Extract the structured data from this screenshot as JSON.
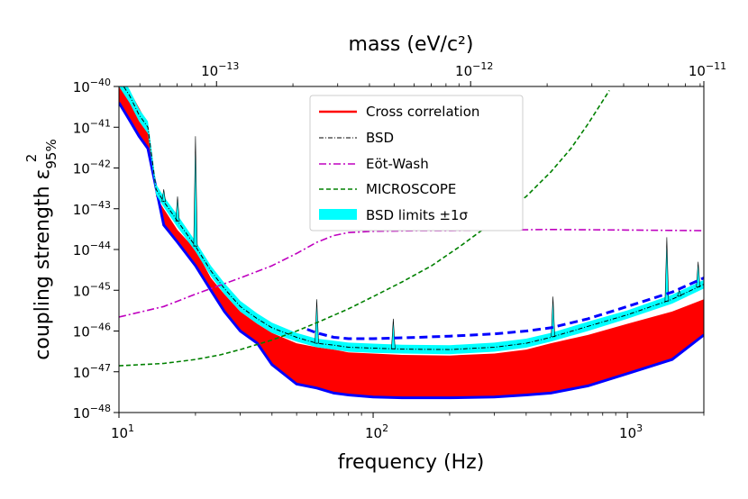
{
  "chart_data": {
    "type": "line",
    "xlabel": "frequency (Hz)",
    "ylabel_main": "coupling strength ε",
    "ylabel_sub": "95%",
    "ylabel_sup": "2",
    "top_xlabel": "mass (eV/c²)",
    "x_scale": "log",
    "y_scale": "log",
    "xlim": [
      10,
      2000
    ],
    "ylim": [
      1e-48,
      1e-40
    ],
    "x_ticks": [
      {
        "value": 10,
        "base": "10",
        "exp": "1"
      },
      {
        "value": 100,
        "base": "10",
        "exp": "2"
      },
      {
        "value": 1000,
        "base": "10",
        "exp": "3"
      }
    ],
    "y_ticks": [
      {
        "value": 1e-48,
        "base": "10",
        "exp": "−48"
      },
      {
        "value": 1e-47,
        "base": "10",
        "exp": "−47"
      },
      {
        "value": 1e-46,
        "base": "10",
        "exp": "−46"
      },
      {
        "value": 1e-45,
        "base": "10",
        "exp": "−45"
      },
      {
        "value": 1e-44,
        "base": "10",
        "exp": "−44"
      },
      {
        "value": 1e-43,
        "base": "10",
        "exp": "−43"
      },
      {
        "value": 1e-42,
        "base": "10",
        "exp": "−42"
      },
      {
        "value": 1e-41,
        "base": "10",
        "exp": "−41"
      },
      {
        "value": 1e-40,
        "base": "10",
        "exp": "−40"
      }
    ],
    "top_ticks": [
      {
        "freq": 24.2,
        "base": "10",
        "exp": "−13"
      },
      {
        "freq": 241.8,
        "base": "10",
        "exp": "−12"
      },
      {
        "freq": 2418,
        "base": "10",
        "exp": "−11"
      }
    ],
    "legend": {
      "position": "upper-center",
      "entries": [
        {
          "label": "Cross correlation",
          "color": "#ff0000",
          "style": "solid"
        },
        {
          "label": "BSD",
          "color": "#000000",
          "style": "dashdot-thin"
        },
        {
          "label": "Eöt-Wash",
          "color": "#bf00bf",
          "style": "dashdot"
        },
        {
          "label": "MICROSCOPE",
          "color": "#008000",
          "style": "dashed"
        },
        {
          "label": "BSD limits ±1σ",
          "color": "#00ffff",
          "style": "patch"
        }
      ]
    },
    "series": [
      {
        "name": "Cross correlation upper",
        "color": "#ff0000",
        "x": [
          10,
          11,
          12,
          13,
          14,
          15,
          17,
          20,
          23,
          26,
          30,
          35,
          40,
          50,
          60,
          70,
          80,
          100,
          130,
          200,
          300,
          400,
          500,
          700,
          1000,
          1500,
          2000
        ],
        "y": [
          2e-40,
          8e-41,
          3e-41,
          1.2e-41,
          2e-43,
          1e-43,
          3e-44,
          1e-44,
          2e-45,
          8e-46,
          3e-46,
          1.5e-46,
          9e-47,
          5e-47,
          4e-47,
          3.5e-47,
          3e-47,
          2.8e-47,
          2.6e-47,
          2.5e-47,
          2.8e-47,
          3.5e-47,
          5e-47,
          8e-47,
          1.5e-46,
          3e-46,
          6e-46
        ]
      },
      {
        "name": "Cross correlation lower envelope",
        "color": "#0000ff",
        "x": [
          10,
          11,
          12,
          13,
          15,
          17,
          20,
          23,
          26,
          30,
          35,
          40,
          50,
          60,
          70,
          80,
          100,
          130,
          200,
          300,
          400,
          500,
          700,
          1000,
          1500,
          2000
        ],
        "y": [
          4e-41,
          1.5e-41,
          6e-42,
          3e-42,
          4e-44,
          1.5e-44,
          4e-45,
          1e-45,
          3e-46,
          1e-46,
          5e-47,
          1.5e-47,
          5e-48,
          4e-48,
          3e-48,
          2.7e-48,
          2.4e-48,
          2.3e-48,
          2.3e-48,
          2.4e-48,
          2.7e-48,
          3e-48,
          4.5e-48,
          9e-48,
          2e-47,
          8e-47
        ]
      },
      {
        "name": "BSD upper limit dashed",
        "color": "#0000ff",
        "x": [
          55,
          60,
          70,
          80,
          100,
          150,
          200,
          300,
          400,
          500,
          700,
          1000,
          1500,
          2000
        ],
        "y": [
          1.1e-46,
          9e-47,
          7e-47,
          6.5e-47,
          6.5e-47,
          7e-47,
          7.5e-47,
          8.5e-47,
          1e-46,
          1.2e-46,
          2e-46,
          4e-46,
          9e-46,
          2e-45
        ]
      },
      {
        "name": "BSD",
        "color": "#000000",
        "x": [
          10,
          11,
          12,
          13,
          14,
          15,
          17,
          20,
          23,
          26,
          30,
          35,
          40,
          50,
          60,
          70,
          80,
          100,
          130,
          200,
          300,
          400,
          500,
          700,
          1000,
          1500,
          2000
        ],
        "y": [
          1.5e-40,
          6e-41,
          2e-41,
          1e-41,
          3e-43,
          1.5e-43,
          5e-44,
          1.2e-44,
          3e-45,
          1.1e-45,
          4e-46,
          2e-46,
          1.2e-46,
          7e-47,
          5e-47,
          4.5e-47,
          4e-47,
          3.8e-47,
          3.6e-47,
          3.5e-47,
          4e-47,
          5e-47,
          7e-47,
          1.3e-46,
          2.5e-46,
          6e-46,
          1.4e-45
        ]
      },
      {
        "name": "BSD band low",
        "color": "#00ffff",
        "x": [
          10,
          11,
          12,
          13,
          14,
          15,
          17,
          20,
          23,
          26,
          30,
          35,
          40,
          50,
          60,
          70,
          80,
          100,
          130,
          200,
          300,
          400,
          500,
          700,
          1000,
          1500,
          2000
        ],
        "y": [
          1e-40,
          4e-41,
          1.4e-41,
          7e-42,
          2.2e-43,
          1.1e-43,
          3.5e-44,
          9e-45,
          2.2e-45,
          8e-46,
          3e-46,
          1.5e-46,
          9e-47,
          5.5e-47,
          4e-47,
          3.5e-47,
          3.1e-47,
          2.9e-47,
          2.8e-47,
          2.7e-47,
          3.1e-47,
          3.9e-47,
          5.5e-47,
          1e-46,
          2e-46,
          4.7e-46,
          1.1e-45
        ]
      },
      {
        "name": "BSD band high",
        "color": "#00ffff",
        "x": [
          10,
          11,
          12,
          13,
          14,
          15,
          17,
          20,
          23,
          26,
          30,
          35,
          40,
          50,
          60,
          70,
          80,
          100,
          130,
          200,
          300,
          400,
          500,
          700,
          1000,
          1500,
          2000
        ],
        "y": [
          2.2e-40,
          8.5e-41,
          2.8e-41,
          1.4e-41,
          4e-43,
          2e-43,
          7e-44,
          1.6e-44,
          4e-45,
          1.5e-45,
          5.5e-46,
          2.7e-46,
          1.6e-46,
          9e-47,
          6.5e-47,
          5.8e-47,
          5.2e-47,
          4.9e-47,
          4.6e-47,
          4.5e-47,
          5.2e-47,
          6.5e-47,
          9e-47,
          1.7e-46,
          3.2e-46,
          7.8e-46,
          1.8e-45
        ]
      },
      {
        "name": "Eöt-Wash",
        "color": "#bf00bf",
        "x": [
          10,
          15,
          20,
          30,
          40,
          50,
          60,
          70,
          80,
          100,
          150,
          200,
          300,
          500,
          1000,
          2000
        ],
        "y": [
          2.2e-46,
          4e-46,
          8e-46,
          2e-45,
          4e-45,
          8e-45,
          1.5e-44,
          2.2e-44,
          2.6e-44,
          2.8e-44,
          2.9e-44,
          2.9e-44,
          3e-44,
          3.1e-44,
          3e-44,
          2.9e-44
        ]
      },
      {
        "name": "MICROSCOPE",
        "color": "#008000",
        "x": [
          10,
          15,
          20,
          25,
          30,
          40,
          50,
          60,
          80,
          100,
          130,
          170,
          220,
          300,
          400,
          500,
          600,
          700,
          850
        ],
        "y": [
          1.4e-47,
          1.6e-47,
          2e-47,
          2.6e-47,
          3.5e-47,
          6e-47,
          1e-46,
          1.6e-46,
          3.5e-46,
          7e-46,
          1.6e-45,
          4e-45,
          1.2e-44,
          5e-44,
          2e-43,
          8e-43,
          3e-42,
          1.2e-41,
          8e-41
        ]
      }
    ],
    "spikes": [
      {
        "x": 20,
        "y": 6e-42
      },
      {
        "x": 17,
        "y": 2e-43
      },
      {
        "x": 15,
        "y": 3e-43
      },
      {
        "x": 60,
        "y": 6e-46
      },
      {
        "x": 120,
        "y": 2e-46
      },
      {
        "x": 510,
        "y": 7e-46
      },
      {
        "x": 1430,
        "y": 2e-44
      },
      {
        "x": 1600,
        "y": 1e-45
      },
      {
        "x": 1900,
        "y": 5e-45
      }
    ]
  }
}
